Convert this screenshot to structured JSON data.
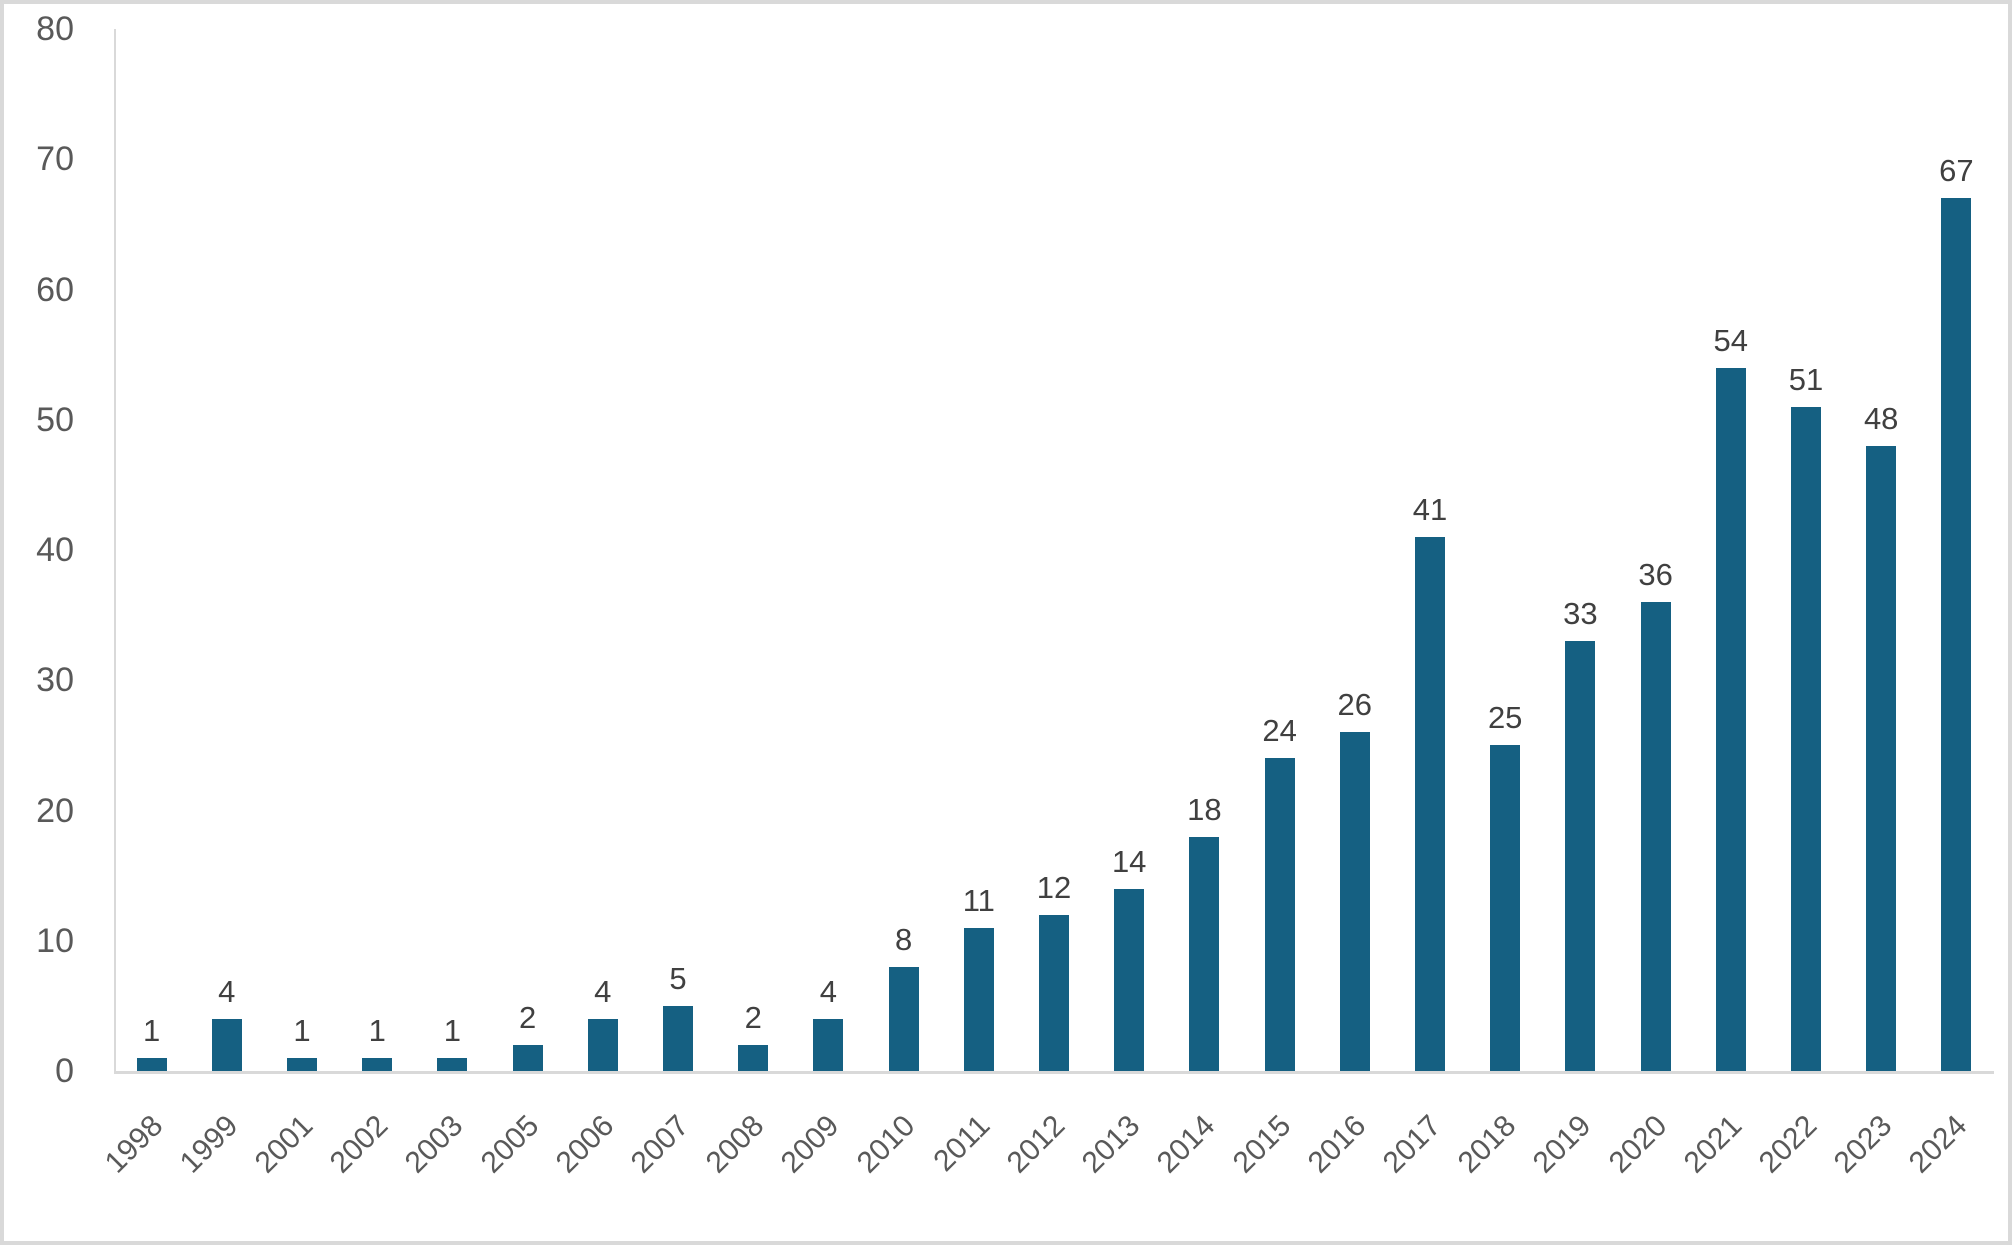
{
  "chart_data": {
    "type": "bar",
    "title": "",
    "xlabel": "",
    "ylabel": "",
    "categories": [
      "1998",
      "1999",
      "2001",
      "2002",
      "2003",
      "2005",
      "2006",
      "2007",
      "2008",
      "2009",
      "2010",
      "2011",
      "2012",
      "2013",
      "2014",
      "2015",
      "2016",
      "2017",
      "2018",
      "2019",
      "2020",
      "2021",
      "2022",
      "2023",
      "2024"
    ],
    "values": [
      1,
      4,
      1,
      1,
      1,
      2,
      4,
      5,
      2,
      4,
      8,
      11,
      12,
      14,
      18,
      24,
      26,
      41,
      25,
      33,
      36,
      54,
      51,
      48,
      67
    ],
    "ylim": [
      0,
      80
    ],
    "y_ticks": [
      0,
      10,
      20,
      30,
      40,
      50,
      60,
      70,
      80
    ],
    "grid": false,
    "legend": false,
    "data_labels_shown": true,
    "x_label_rotation_deg": 45,
    "colors": {
      "bar": "#156082",
      "axis_line": "#D9D9D9",
      "tick_label": "#595959",
      "data_label": "#404040",
      "canvas_border": "#D9D9D9",
      "background": "#FFFFFF"
    }
  }
}
